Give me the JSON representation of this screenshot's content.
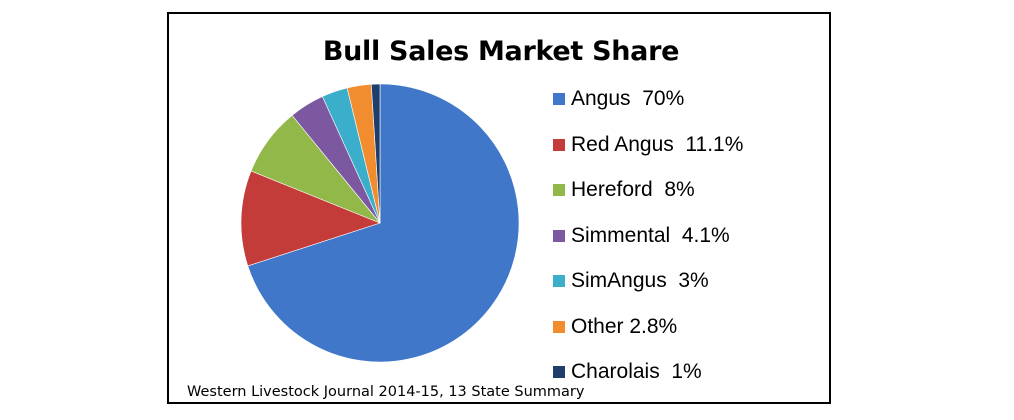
{
  "chart_data": {
    "type": "pie",
    "title": "Bull Sales Market Share",
    "categories": [
      "Angus",
      "Red Angus",
      "Hereford",
      "Simmental",
      "SimAngus",
      "Other",
      "Charolais"
    ],
    "values": [
      70,
      11.1,
      8,
      4.1,
      3,
      2.8,
      1
    ],
    "legend_labels": [
      "Angus  70%",
      "Red Angus  11.1%",
      "Hereford  8%",
      "Simmental  4.1%",
      "SimAngus  3%",
      "Other 2.8%",
      "Charolais  1%"
    ],
    "colors": [
      "#4077C9",
      "#C43C3A",
      "#92B84A",
      "#7B589F",
      "#3BAECB",
      "#F18D2E",
      "#1F3E6C"
    ],
    "legend_position": "right",
    "source": "Western Livestock Journal 2014-15, 13 State Summary"
  }
}
